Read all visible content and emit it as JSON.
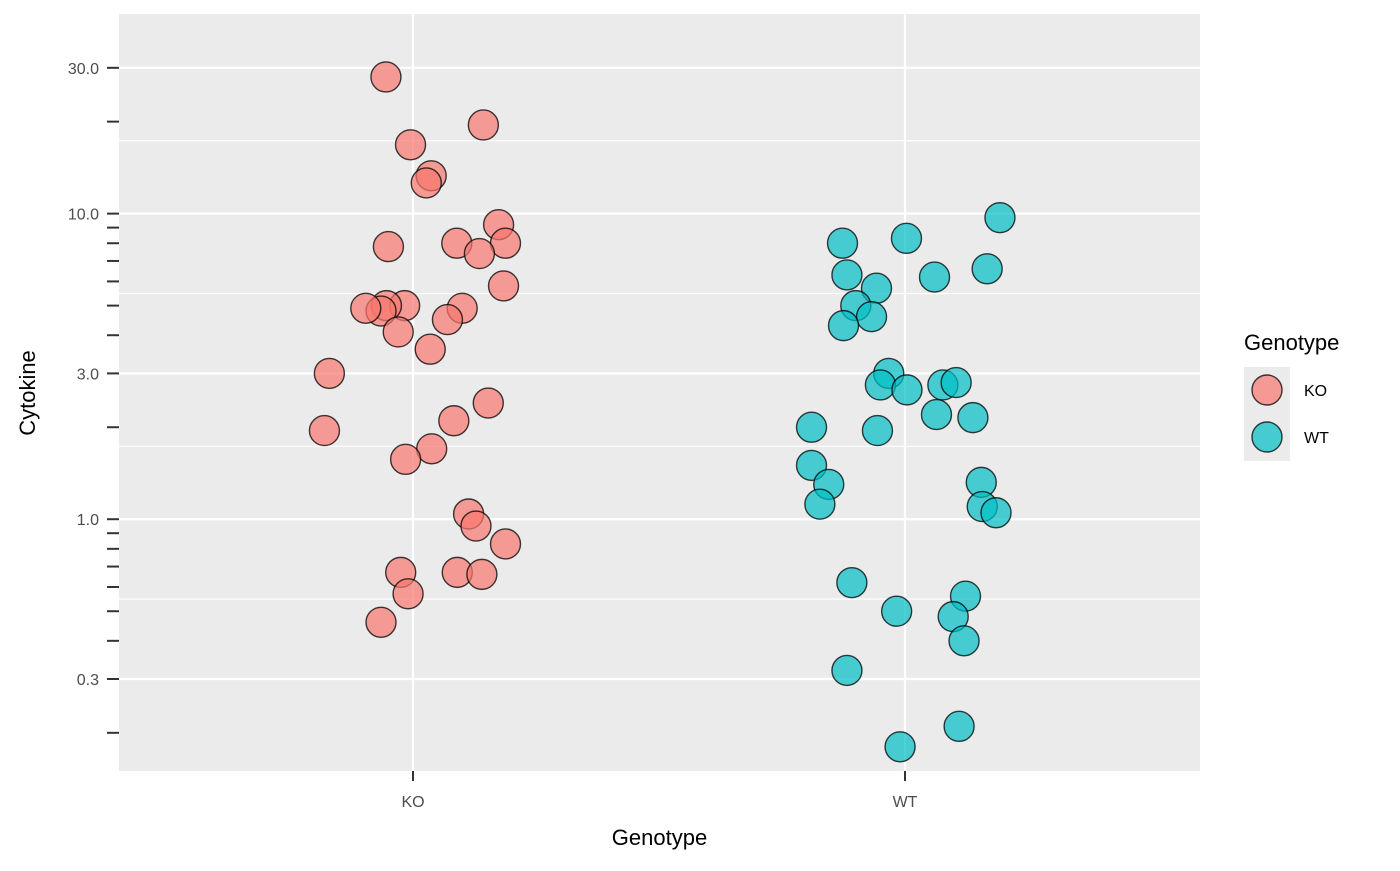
{
  "chart_data": {
    "type": "scatter",
    "title": "",
    "xlabel": "Genotype",
    "ylabel": "Cytokine",
    "y_scale": "log10",
    "ylim": [
      0.15,
      45
    ],
    "x_categories": [
      "KO",
      "WT"
    ],
    "y_ticks": [
      {
        "value": 0.3,
        "label": "0.3"
      },
      {
        "value": 1,
        "label": "1.0"
      },
      {
        "value": 3,
        "label": "3.0"
      },
      {
        "value": 10,
        "label": "10.0"
      },
      {
        "value": 30,
        "label": "30.0"
      }
    ],
    "y_minor_ticks": [
      0.2,
      0.4,
      0.5,
      0.6,
      0.7,
      0.8,
      0.9,
      2,
      4,
      5,
      6,
      7,
      8,
      9,
      20
    ],
    "y_minor_gridlines": [
      0.548,
      1.732,
      5.477,
      17.32
    ],
    "grid": true,
    "background": "#EBEBEB",
    "legend": {
      "title": "Genotype",
      "position": "right",
      "entries": [
        {
          "label": "KO",
          "color": "#F8766D"
        },
        {
          "label": "WT",
          "color": "#00BFC4"
        }
      ]
    },
    "series": [
      {
        "name": "KO",
        "color": "#F8766D",
        "points": [
          {
            "x": -0.055,
            "y": 28.0
          },
          {
            "x": 0.143,
            "y": 19.5
          },
          {
            "x": -0.005,
            "y": 16.8
          },
          {
            "x": 0.037,
            "y": 13.3
          },
          {
            "x": 0.027,
            "y": 12.6
          },
          {
            "x": 0.174,
            "y": 9.2
          },
          {
            "x": 0.089,
            "y": 8.0
          },
          {
            "x": 0.188,
            "y": 8.0
          },
          {
            "x": -0.05,
            "y": 7.8
          },
          {
            "x": 0.135,
            "y": 7.4
          },
          {
            "x": 0.184,
            "y": 5.8
          },
          {
            "x": -0.017,
            "y": 5.0
          },
          {
            "x": -0.054,
            "y": 5.0
          },
          {
            "x": -0.065,
            "y": 4.8
          },
          {
            "x": -0.096,
            "y": 4.9
          },
          {
            "x": 0.1,
            "y": 4.9
          },
          {
            "x": 0.07,
            "y": 4.5
          },
          {
            "x": -0.03,
            "y": 4.1
          },
          {
            "x": 0.035,
            "y": 3.6
          },
          {
            "x": -0.17,
            "y": 3.0
          },
          {
            "x": 0.153,
            "y": 2.4
          },
          {
            "x": 0.083,
            "y": 2.1
          },
          {
            "x": -0.18,
            "y": 1.95
          },
          {
            "x": 0.038,
            "y": 1.7
          },
          {
            "x": -0.015,
            "y": 1.57
          },
          {
            "x": 0.113,
            "y": 1.04
          },
          {
            "x": 0.128,
            "y": 0.95
          },
          {
            "x": 0.188,
            "y": 0.83
          },
          {
            "x": -0.025,
            "y": 0.67
          },
          {
            "x": 0.09,
            "y": 0.67
          },
          {
            "x": 0.14,
            "y": 0.66
          },
          {
            "x": -0.01,
            "y": 0.57
          },
          {
            "x": -0.065,
            "y": 0.46
          }
        ]
      },
      {
        "name": "WT",
        "color": "#00BFC4",
        "points": [
          {
            "x": 0.193,
            "y": 9.7
          },
          {
            "x": 0.003,
            "y": 8.3
          },
          {
            "x": -0.127,
            "y": 8.0
          },
          {
            "x": -0.118,
            "y": 6.3
          },
          {
            "x": 0.06,
            "y": 6.2
          },
          {
            "x": 0.167,
            "y": 6.6
          },
          {
            "x": -0.058,
            "y": 5.7
          },
          {
            "x": -0.1,
            "y": 5.0
          },
          {
            "x": -0.068,
            "y": 4.6
          },
          {
            "x": -0.125,
            "y": 4.3
          },
          {
            "x": -0.033,
            "y": 3.0
          },
          {
            "x": -0.05,
            "y": 2.75
          },
          {
            "x": 0.004,
            "y": 2.65
          },
          {
            "x": 0.077,
            "y": 2.75
          },
          {
            "x": 0.104,
            "y": 2.8
          },
          {
            "x": 0.064,
            "y": 2.2
          },
          {
            "x": 0.138,
            "y": 2.15
          },
          {
            "x": -0.19,
            "y": 2.0
          },
          {
            "x": -0.056,
            "y": 1.95
          },
          {
            "x": -0.19,
            "y": 1.5
          },
          {
            "x": -0.155,
            "y": 1.3
          },
          {
            "x": -0.173,
            "y": 1.12
          },
          {
            "x": 0.155,
            "y": 1.32
          },
          {
            "x": 0.157,
            "y": 1.1
          },
          {
            "x": 0.185,
            "y": 1.05
          },
          {
            "x": -0.108,
            "y": 0.62
          },
          {
            "x": -0.017,
            "y": 0.5
          },
          {
            "x": 0.123,
            "y": 0.56
          },
          {
            "x": 0.098,
            "y": 0.48
          },
          {
            "x": 0.12,
            "y": 0.4
          },
          {
            "x": -0.118,
            "y": 0.32
          },
          {
            "x": 0.11,
            "y": 0.21
          },
          {
            "x": -0.01,
            "y": 0.18
          }
        ]
      }
    ]
  }
}
